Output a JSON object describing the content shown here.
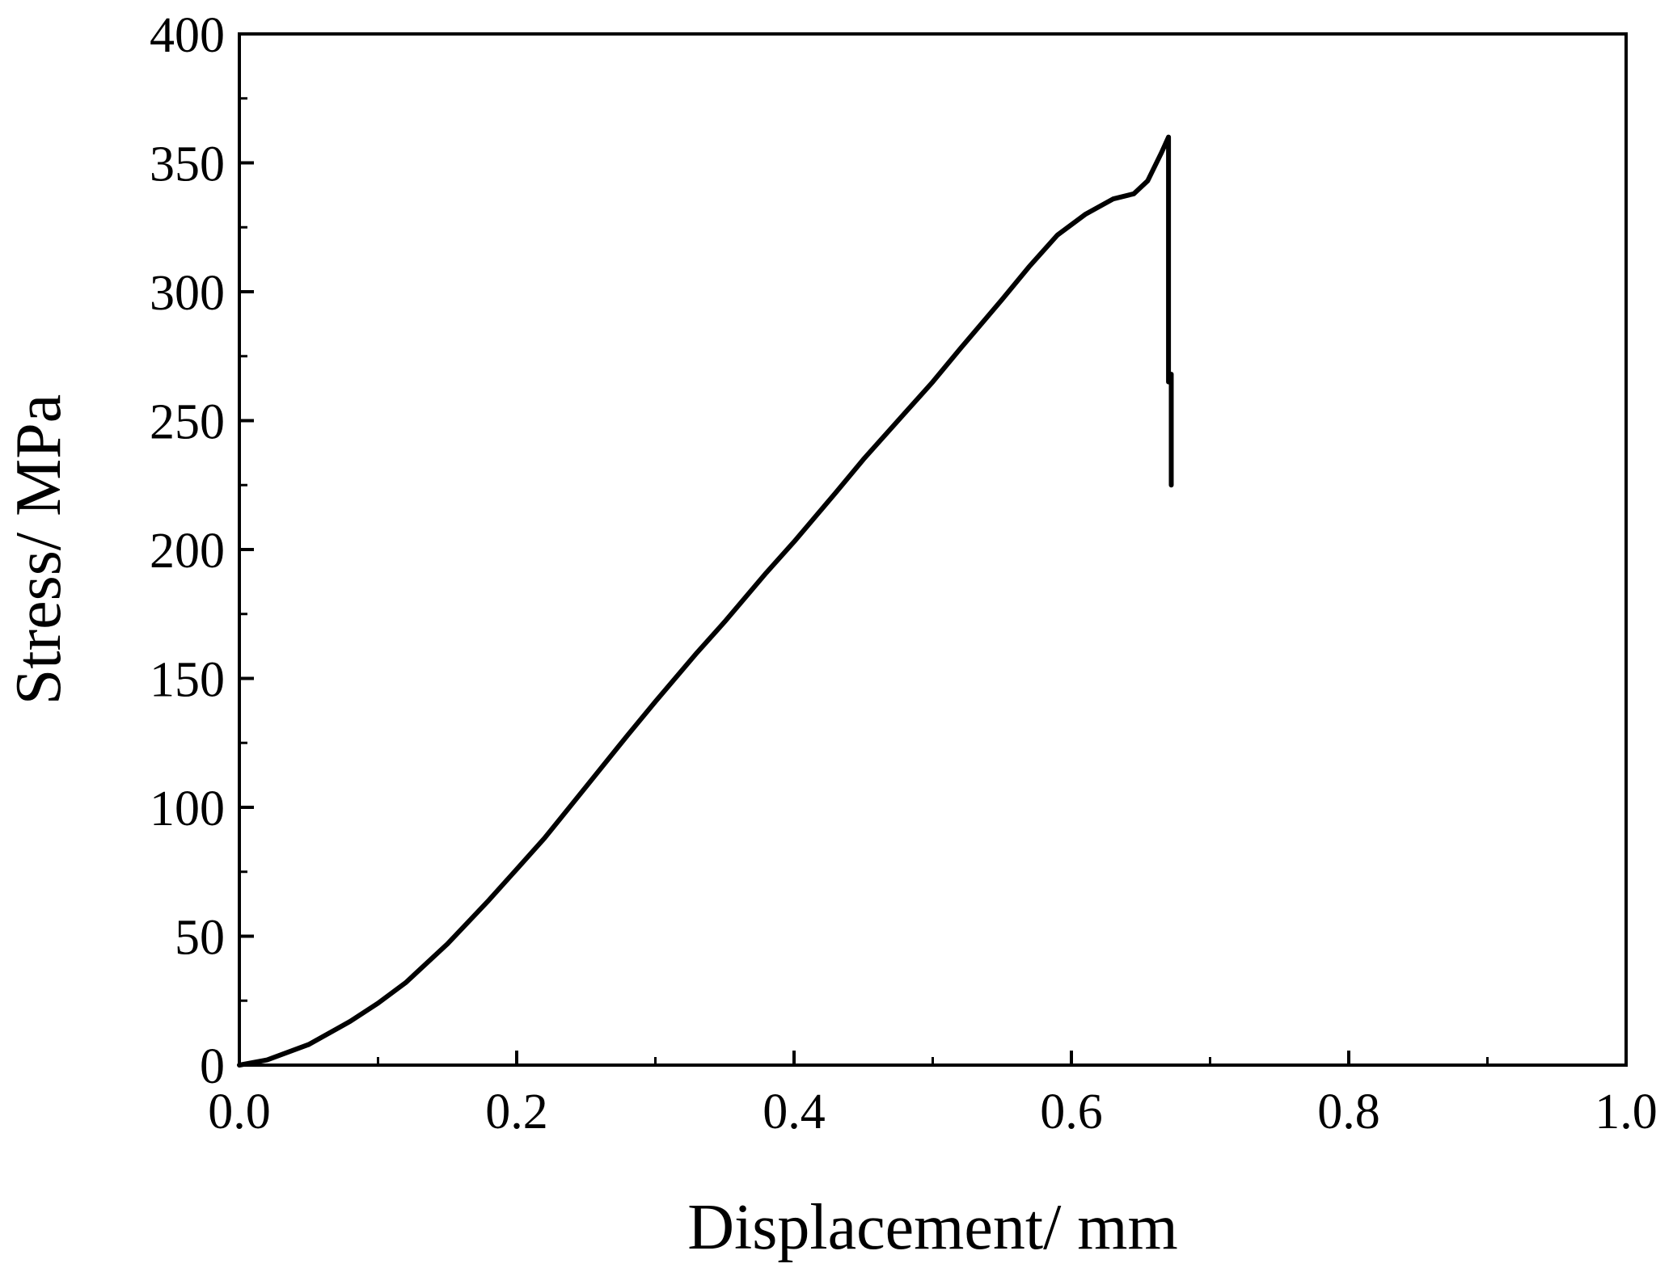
{
  "chart_data": {
    "type": "line",
    "title": "",
    "xlabel": "Displacement/ mm",
    "ylabel": "Stress/ MPa",
    "xlim": [
      0.0,
      1.0
    ],
    "ylim": [
      0,
      400
    ],
    "x_ticks": [
      0.0,
      0.2,
      0.4,
      0.6,
      0.8,
      1.0
    ],
    "x_tick_labels": [
      "0.0",
      "0.2",
      "0.4",
      "0.6",
      "0.8",
      "1.0"
    ],
    "y_ticks": [
      0,
      50,
      100,
      150,
      200,
      250,
      300,
      350,
      400
    ],
    "y_tick_labels": [
      "0",
      "50",
      "100",
      "150",
      "200",
      "250",
      "300",
      "350",
      "400"
    ],
    "x_minor_step": 0.1,
    "y_minor_step": 25,
    "grid": false,
    "legend": "none",
    "line_color": "#000000",
    "series": [
      {
        "x": [
          0.0,
          0.02,
          0.05,
          0.08,
          0.1,
          0.12,
          0.15,
          0.18,
          0.2,
          0.22,
          0.25,
          0.28,
          0.3,
          0.33,
          0.35,
          0.38,
          0.4,
          0.43,
          0.45,
          0.48,
          0.5,
          0.52,
          0.55,
          0.57,
          0.59,
          0.61,
          0.63,
          0.645,
          0.655,
          0.665,
          0.67,
          0.67,
          0.672,
          0.672
        ],
        "y": [
          0,
          2,
          8,
          17,
          24,
          32,
          47,
          64,
          76,
          88,
          108,
          128,
          141,
          160,
          172,
          191,
          203,
          222,
          235,
          253,
          265,
          278,
          297,
          310,
          322,
          330,
          336,
          338,
          343,
          354,
          360,
          265,
          268,
          225
        ]
      }
    ]
  }
}
